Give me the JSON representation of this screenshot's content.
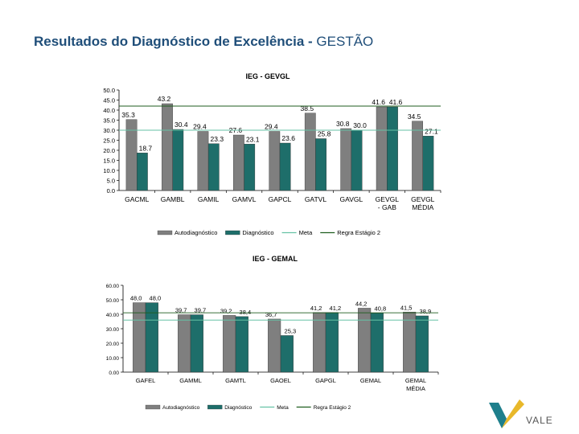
{
  "page": {
    "title_bold": "Resultados do Diagnóstico de Excelência - ",
    "title_light": "GESTÃO"
  },
  "colors": {
    "auto": "#7f7f7f",
    "diag": "#1e6e6a",
    "meta": "#66c2a5",
    "regra": "#1f5e1f",
    "title": "#1f4e79"
  },
  "logo": {
    "text": "VALE",
    "icon": "vale-v-logo-icon"
  },
  "chart_data": [
    {
      "type": "bar",
      "title": "IEG - GEVGL",
      "categories": [
        [
          "GACML"
        ],
        [
          "GAMBL"
        ],
        [
          "GAMIL"
        ],
        [
          "GAMVL"
        ],
        [
          "GAPCL"
        ],
        [
          "GATVL"
        ],
        [
          "GAVGL"
        ],
        [
          "GEVGL",
          "- GAB"
        ],
        [
          "GEVGL",
          "MÉDIA"
        ]
      ],
      "ylim": [
        0,
        50
      ],
      "yticks": [
        "0.0",
        "5.0",
        "10.0",
        "15.0",
        "20.0",
        "25.0",
        "30.0",
        "35.0",
        "40.0",
        "45.0",
        "50.0"
      ],
      "series": [
        {
          "name": "Autodiagnóstico",
          "values": [
            35.3,
            43.2,
            29.4,
            27.6,
            29.4,
            38.5,
            30.8,
            41.6,
            34.5
          ],
          "labels": [
            "35.3",
            "43.2",
            "29.4",
            "27.6",
            "29.4",
            "38.5",
            "30.8",
            "41.6",
            "34.5"
          ]
        },
        {
          "name": "Diagnóstico",
          "values": [
            18.7,
            30.4,
            23.3,
            23.1,
            23.6,
            25.8,
            30.0,
            41.6,
            27.1
          ],
          "labels": [
            "18.7",
            "30.4",
            "23.3",
            "23.1",
            "23.6",
            "25.8",
            "30.0",
            "41.6",
            "27.1"
          ]
        }
      ],
      "reference_lines": [
        {
          "name": "Meta",
          "value": 30.0
        },
        {
          "name": "Regra Estágio 2",
          "value": 42.0
        }
      ],
      "legend": [
        "Autodiagnóstico",
        "Diagnóstico",
        "Meta",
        "Regra Estágio 2"
      ],
      "legend_position": "bottom"
    },
    {
      "type": "bar",
      "title": "IEG - GEMAL",
      "categories": [
        [
          "GAFEL"
        ],
        [
          "GAMML"
        ],
        [
          "GAMTL"
        ],
        [
          "GAOEL"
        ],
        [
          "GAPGL"
        ],
        [
          "GEMAL"
        ],
        [
          "GEMAL",
          "MÉDIA"
        ]
      ],
      "ylim": [
        0,
        60
      ],
      "yticks": [
        "0.00",
        "10.00",
        "20.00",
        "30.00",
        "40.00",
        "50.00",
        "60.00"
      ],
      "series": [
        {
          "name": "Autodiagnóstico",
          "values": [
            48.0,
            39.7,
            39.2,
            36.7,
            41.2,
            44.2,
            41.5
          ],
          "labels": [
            "48,0",
            "39,7",
            "39,2",
            "36,7",
            "41,2",
            "44,2",
            "41,5"
          ]
        },
        {
          "name": "Diagnóstico",
          "values": [
            48.0,
            39.7,
            38.4,
            25.3,
            41.2,
            40.8,
            38.9
          ],
          "labels": [
            "48,0",
            "39,7",
            "38,4",
            "25,3",
            "41,2",
            "40,8",
            "38,9"
          ]
        }
      ],
      "reference_lines": [
        {
          "name": "Meta",
          "value": 36.0
        },
        {
          "name": "Regra Estágio 2",
          "value": 41.0
        }
      ],
      "legend": [
        "Autodiagnóstico",
        "Diagnóstico",
        "Meta",
        "Regra Estágio 2"
      ],
      "legend_position": "bottom"
    }
  ]
}
